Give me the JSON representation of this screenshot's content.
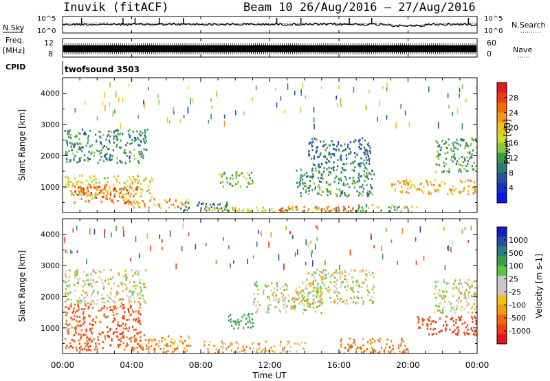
{
  "header": {
    "station": "Inuvik (fitACF)",
    "beam_and_dates": "Beam 10 26/Aug/2016 – 27/Aug/2016"
  },
  "summary_panels": {
    "nsky_label": "N.Sky",
    "nsky_tick_top": "10^5",
    "nsky_tick_bottom": "10^0",
    "nsearch_label": "N.Search",
    "nsearch_tick_top": "10^5",
    "nsearch_tick_bottom": "10^0",
    "freq_label_top": "Freq.",
    "freq_label_bottom": "[MHz]",
    "freq_tick_top": "12",
    "freq_tick_bottom": "8",
    "nave_label": "Nave",
    "nave_tick_top": "60",
    "nave_tick_bottom": "0",
    "cpid_label": "CPID",
    "cpid_value": "twofsound 3503"
  },
  "power_colorbar": {
    "label": "Power [dB]",
    "ticks": [
      "28",
      "24",
      "20",
      "16",
      "12",
      "8",
      "4"
    ],
    "colors": [
      "#e8181c",
      "#f03c12",
      "#f46a0c",
      "#f69a14",
      "#f2c416",
      "#d2d82a",
      "#8cc83c",
      "#3d9a4a",
      "#2a7e70",
      "#2850a0",
      "#1c30c8",
      "#0a14e8"
    ]
  },
  "velocity_colorbar": {
    "label": "Velocity [m s-1]",
    "ticks": [
      "1000",
      "500",
      "100",
      "25",
      "-25",
      "-100",
      "-500",
      "-1000"
    ],
    "colors": [
      "#1020c8",
      "#2a4aa8",
      "#2f7e7a",
      "#34a04a",
      "#58c840",
      "#c8c8c8",
      "#c8c8c8",
      "#f2c010",
      "#f49a10",
      "#f06a10",
      "#ec4014",
      "#e81418"
    ]
  },
  "chart_data": [
    {
      "type": "heatmap",
      "name": "power",
      "ylabel": "Slant Range [km]",
      "ylim": [
        180,
        4500
      ],
      "yticks": [
        1000,
        2000,
        3000,
        4000
      ],
      "xlim": [
        0,
        24
      ],
      "xticks": [
        "00:00",
        "04:00",
        "08:00",
        "12:00",
        "16:00",
        "20:00",
        "00:00"
      ],
      "colorbar_units": "dB",
      "regions": [
        {
          "t0": 0.1,
          "t1": 4.9,
          "r0": 1800,
          "r1": 2900,
          "value": 10
        },
        {
          "t0": 0.1,
          "t1": 5.2,
          "r0": 700,
          "r1": 1400,
          "value": 18
        },
        {
          "t0": 0.6,
          "t1": 4.3,
          "r0": 500,
          "r1": 1100,
          "value": 27
        },
        {
          "t0": 3.5,
          "t1": 7.3,
          "r0": 350,
          "r1": 650,
          "value": 22
        },
        {
          "t0": 6.8,
          "t1": 9.6,
          "r0": 250,
          "r1": 550,
          "value": 8
        },
        {
          "t0": 9.0,
          "t1": 11.0,
          "r0": 1000,
          "r1": 1500,
          "value": 13
        },
        {
          "t0": 8.2,
          "t1": 15.0,
          "r0": 200,
          "r1": 380,
          "value": 18
        },
        {
          "t0": 12.5,
          "t1": 17.5,
          "r0": 200,
          "r1": 400,
          "value": 26
        },
        {
          "t0": 14.2,
          "t1": 17.8,
          "r0": 1600,
          "r1": 2600,
          "value": 8
        },
        {
          "t0": 13.5,
          "t1": 18.0,
          "r0": 700,
          "r1": 1600,
          "value": 11
        },
        {
          "t0": 16.5,
          "t1": 20.5,
          "r0": 200,
          "r1": 450,
          "value": 14
        },
        {
          "t0": 19.0,
          "t1": 24.0,
          "r0": 800,
          "r1": 1250,
          "value": 22
        },
        {
          "t0": 21.5,
          "t1": 24.0,
          "r0": 1500,
          "r1": 2600,
          "value": 12
        }
      ]
    },
    {
      "type": "heatmap",
      "name": "velocity",
      "ylabel": "Slant Range [km]",
      "xlabel": "Time UT",
      "ylim": [
        180,
        4500
      ],
      "yticks": [
        1000,
        2000,
        3000,
        4000
      ],
      "xlim": [
        0,
        24
      ],
      "xticks": [
        "00:00",
        "04:00",
        "08:00",
        "12:00",
        "16:00",
        "20:00",
        "00:00"
      ],
      "colorbar_units": "m s-1",
      "regions": [
        {
          "t0": 0.1,
          "t1": 4.8,
          "r0": 1800,
          "r1": 2900,
          "value": 0
        },
        {
          "t0": 0.1,
          "t1": 4.5,
          "r0": 300,
          "r1": 1800,
          "value": -300
        },
        {
          "t0": 4.0,
          "t1": 7.5,
          "r0": 250,
          "r1": 800,
          "value": -100
        },
        {
          "t0": 9.5,
          "t1": 11.0,
          "r0": 1000,
          "r1": 1500,
          "value": 200
        },
        {
          "t0": 8.0,
          "t1": 14.0,
          "r0": 200,
          "r1": 600,
          "value": -50
        },
        {
          "t0": 11.0,
          "t1": 15.0,
          "r0": 1500,
          "r1": 2500,
          "value": 0
        },
        {
          "t0": 14.0,
          "t1": 18.0,
          "r0": 1800,
          "r1": 2900,
          "value": 0
        },
        {
          "t0": 16.0,
          "t1": 20.0,
          "r0": 200,
          "r1": 700,
          "value": -150
        },
        {
          "t0": 20.5,
          "t1": 24.0,
          "r0": 800,
          "r1": 1400,
          "value": -400
        },
        {
          "t0": 21.5,
          "t1": 24.0,
          "r0": 1500,
          "r1": 2600,
          "value": 0
        }
      ]
    }
  ]
}
